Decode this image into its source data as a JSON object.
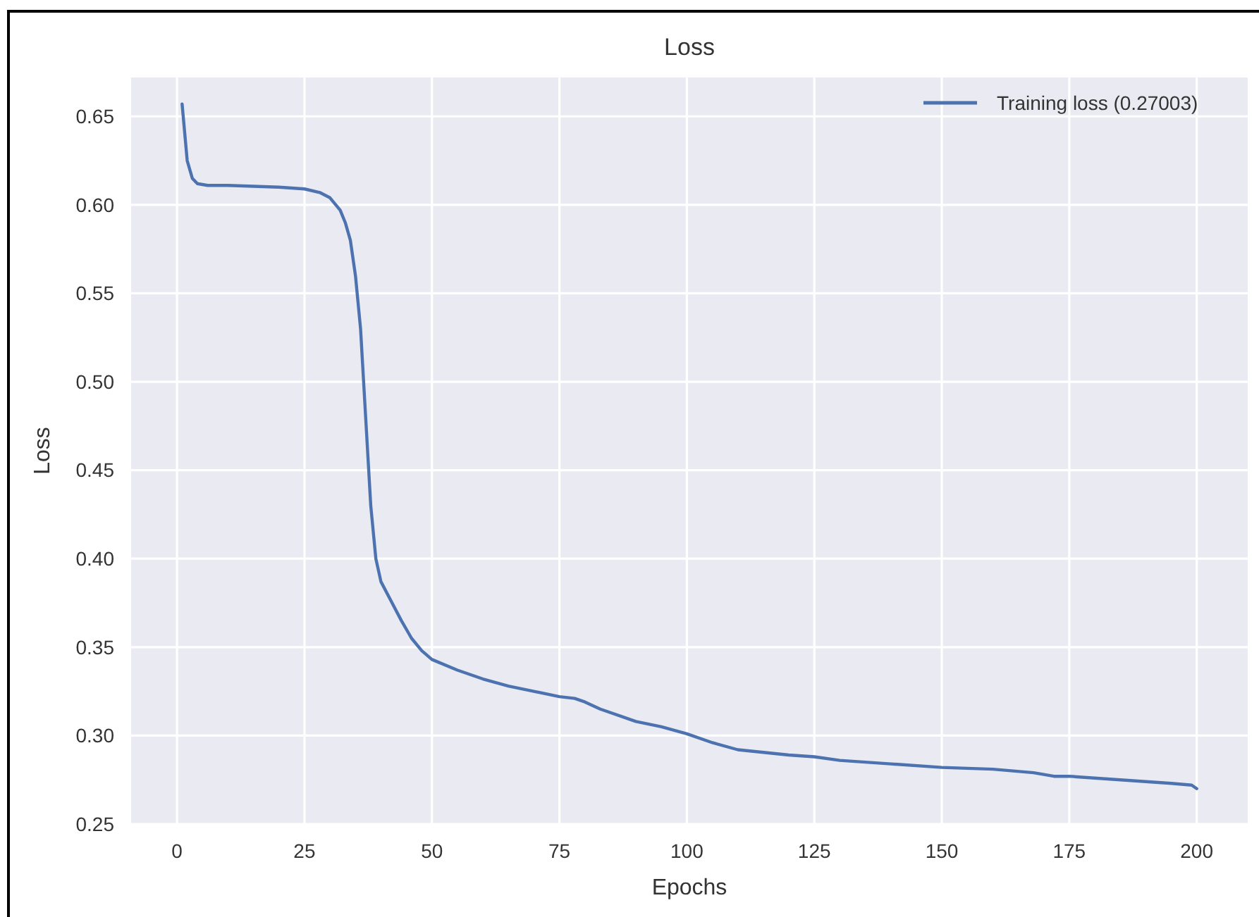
{
  "chart_data": {
    "type": "line",
    "title": "Loss",
    "xlabel": "Epochs",
    "ylabel": "Loss",
    "x": [
      1,
      2,
      3,
      4,
      6,
      10,
      20,
      25,
      28,
      30,
      32,
      33,
      34,
      35,
      36,
      37,
      38,
      39,
      40,
      42,
      44,
      46,
      48,
      50,
      55,
      60,
      65,
      70,
      75,
      78,
      80,
      83,
      90,
      95,
      100,
      105,
      110,
      120,
      125,
      130,
      140,
      150,
      160,
      168,
      172,
      175,
      185,
      195,
      199,
      200
    ],
    "series": [
      {
        "name": "Training loss (0.27003)",
        "color": "#4c72b0",
        "values": [
          0.657,
          0.625,
          0.615,
          0.612,
          0.611,
          0.611,
          0.61,
          0.609,
          0.607,
          0.604,
          0.597,
          0.59,
          0.58,
          0.56,
          0.53,
          0.48,
          0.43,
          0.4,
          0.387,
          0.376,
          0.365,
          0.355,
          0.348,
          0.343,
          0.337,
          0.332,
          0.328,
          0.325,
          0.322,
          0.321,
          0.319,
          0.315,
          0.308,
          0.305,
          0.301,
          0.296,
          0.292,
          0.289,
          0.288,
          0.286,
          0.284,
          0.282,
          0.281,
          0.279,
          0.277,
          0.277,
          0.275,
          0.273,
          0.272,
          0.27
        ]
      }
    ],
    "xlim": [
      -9,
      210
    ],
    "ylim": [
      0.25,
      0.672
    ],
    "xticks": [
      0,
      25,
      50,
      75,
      100,
      125,
      150,
      175,
      200
    ],
    "yticks": [
      {
        "value": 0.25,
        "label": "0.25"
      },
      {
        "value": 0.3,
        "label": "0.30"
      },
      {
        "value": 0.35,
        "label": "0.35"
      },
      {
        "value": 0.4,
        "label": "0.40"
      },
      {
        "value": 0.45,
        "label": "0.45"
      },
      {
        "value": 0.5,
        "label": "0.50"
      },
      {
        "value": 0.55,
        "label": "0.55"
      },
      {
        "value": 0.6,
        "label": "0.60"
      },
      {
        "value": 0.65,
        "label": "0.65"
      }
    ],
    "grid": true,
    "legend": "top right",
    "marker": "none",
    "line_style": "solid"
  }
}
